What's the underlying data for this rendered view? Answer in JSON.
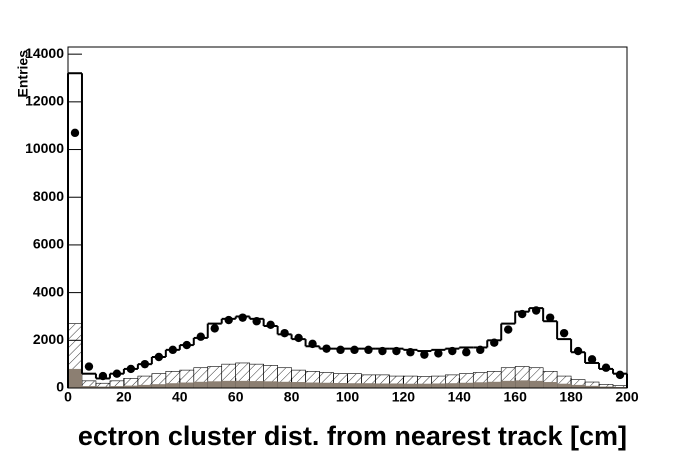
{
  "chart_data": {
    "type": "histogram",
    "x_label": "ectron cluster dist. from nearest track [cm]",
    "y_label": "Entries",
    "bins": [
      0,
      5,
      10,
      15,
      20,
      25,
      30,
      35,
      40,
      45,
      50,
      55,
      60,
      65,
      70,
      75,
      80,
      85,
      90,
      95,
      100,
      105,
      110,
      115,
      120,
      125,
      130,
      135,
      140,
      145,
      150,
      155,
      160,
      165,
      170,
      175,
      180,
      185,
      190,
      195,
      200
    ],
    "xlim": [
      0,
      200
    ],
    "xticks": [
      0,
      20,
      40,
      60,
      80,
      100,
      120,
      140,
      160,
      180,
      200
    ],
    "ylim": [
      0,
      14300
    ],
    "yticks": [
      0,
      2000,
      4000,
      6000,
      8000,
      10000,
      12000,
      14000
    ],
    "series": [
      {
        "style": "hatch",
        "color": "#000000",
        "values": [
          2700,
          300,
          200,
          300,
          400,
          500,
          600,
          700,
          750,
          850,
          900,
          1000,
          1050,
          1000,
          950,
          850,
          750,
          700,
          650,
          600,
          600,
          550,
          550,
          500,
          500,
          480,
          500,
          550,
          600,
          650,
          700,
          850,
          900,
          850,
          700,
          500,
          350,
          250,
          150,
          100
        ]
      },
      {
        "style": "fill",
        "color": "#8c7f72",
        "values": [
          800,
          80,
          60,
          80,
          100,
          130,
          160,
          200,
          230,
          260,
          280,
          300,
          300,
          290,
          280,
          260,
          250,
          230,
          220,
          210,
          200,
          200,
          190,
          190,
          180,
          180,
          190,
          200,
          220,
          240,
          260,
          300,
          320,
          300,
          250,
          180,
          130,
          90,
          60,
          40
        ]
      },
      {
        "style": "step",
        "color": "#000000",
        "values": [
          13200,
          600,
          400,
          600,
          800,
          1000,
          1300,
          1600,
          1800,
          2100,
          2700,
          2900,
          3000,
          2900,
          2600,
          2250,
          2050,
          1750,
          1650,
          1650,
          1650,
          1650,
          1650,
          1650,
          1600,
          1550,
          1600,
          1650,
          1700,
          1700,
          2000,
          2700,
          3200,
          3350,
          2800,
          2050,
          1500,
          1050,
          800,
          600
        ]
      },
      {
        "style": "points",
        "color": "#000000",
        "values": [
          10700,
          900,
          500,
          600,
          800,
          1000,
          1300,
          1600,
          1800,
          2150,
          2500,
          2850,
          2950,
          2800,
          2650,
          2300,
          2100,
          1850,
          1650,
          1600,
          1600,
          1600,
          1550,
          1550,
          1500,
          1400,
          1450,
          1550,
          1500,
          1600,
          1900,
          2450,
          3100,
          3250,
          2950,
          2300,
          1550,
          1200,
          850,
          550
        ]
      }
    ]
  }
}
